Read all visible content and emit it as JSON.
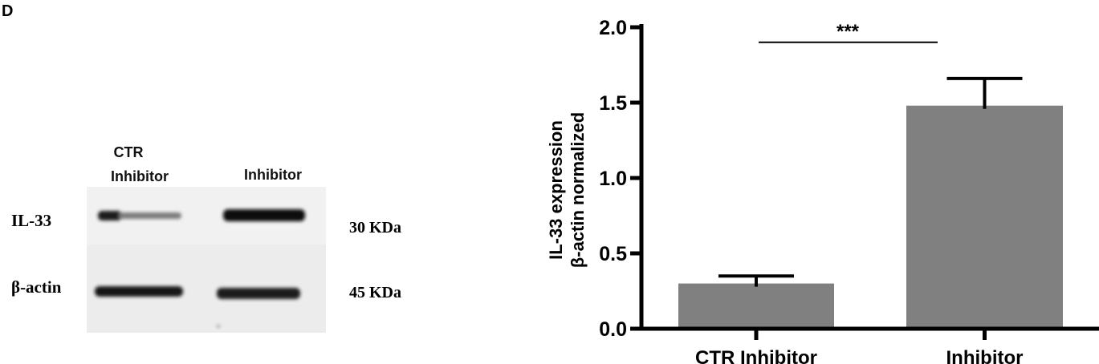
{
  "panel_label": "D",
  "blot": {
    "lanes": [
      "CTR\nInhibitor",
      "Inhibitor"
    ],
    "lane_line1": "CTR",
    "lane_line2": "Inhibitor",
    "lane2": "Inhibitor",
    "rows": [
      {
        "label": "IL-33",
        "size": "30 KDa"
      },
      {
        "label": "β-actin",
        "size": "45 KDa"
      }
    ]
  },
  "chart_data": {
    "type": "bar",
    "categories": [
      "CTR Inhibitor",
      "Inhibitor"
    ],
    "values": [
      0.3,
      1.48
    ],
    "error_upper": [
      0.35,
      1.66
    ],
    "ylabel_line1": "IL-33  expression",
    "ylabel_line2": "β-actin normalized",
    "xlabel": "",
    "ylim": [
      0,
      2.0
    ],
    "yticks": [
      "0.0",
      "0.5",
      "1.0",
      "1.5",
      "2.0"
    ],
    "significance": {
      "label": "***",
      "between": [
        "CTR Inhibitor",
        "Inhibitor"
      ],
      "level": 1.9
    },
    "bar_color": "#808080",
    "grid": false
  }
}
